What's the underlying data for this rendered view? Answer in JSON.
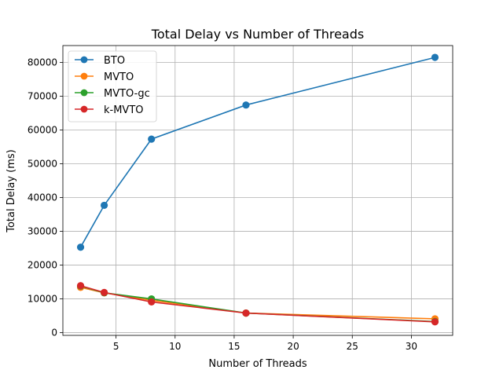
{
  "chart_data": {
    "type": "line",
    "title": "Total Delay vs Number of Threads",
    "xlabel": "Number of Threads",
    "ylabel": "Total Delay (ms)",
    "x": [
      2,
      4,
      8,
      16,
      32
    ],
    "xlim": [
      0.5,
      33.5
    ],
    "ylim": [
      -800,
      85000
    ],
    "xticks": [
      5,
      10,
      15,
      20,
      25,
      30
    ],
    "yticks": [
      0,
      10000,
      20000,
      30000,
      40000,
      50000,
      60000,
      70000,
      80000
    ],
    "grid": true,
    "legend_position": "upper-left",
    "series": [
      {
        "name": "BTO",
        "color": "#1f77b4",
        "values": [
          25300,
          37700,
          57300,
          67400,
          81500
        ]
      },
      {
        "name": "MVTO",
        "color": "#ff7f0e",
        "values": [
          13400,
          11800,
          9600,
          5800,
          4100
        ]
      },
      {
        "name": "MVTO-gc",
        "color": "#2ca02c",
        "values": [
          13800,
          11800,
          10000,
          5800,
          3300
        ]
      },
      {
        "name": "k-MVTO",
        "color": "#d62728",
        "values": [
          13900,
          11900,
          9100,
          5800,
          3200
        ]
      }
    ]
  }
}
